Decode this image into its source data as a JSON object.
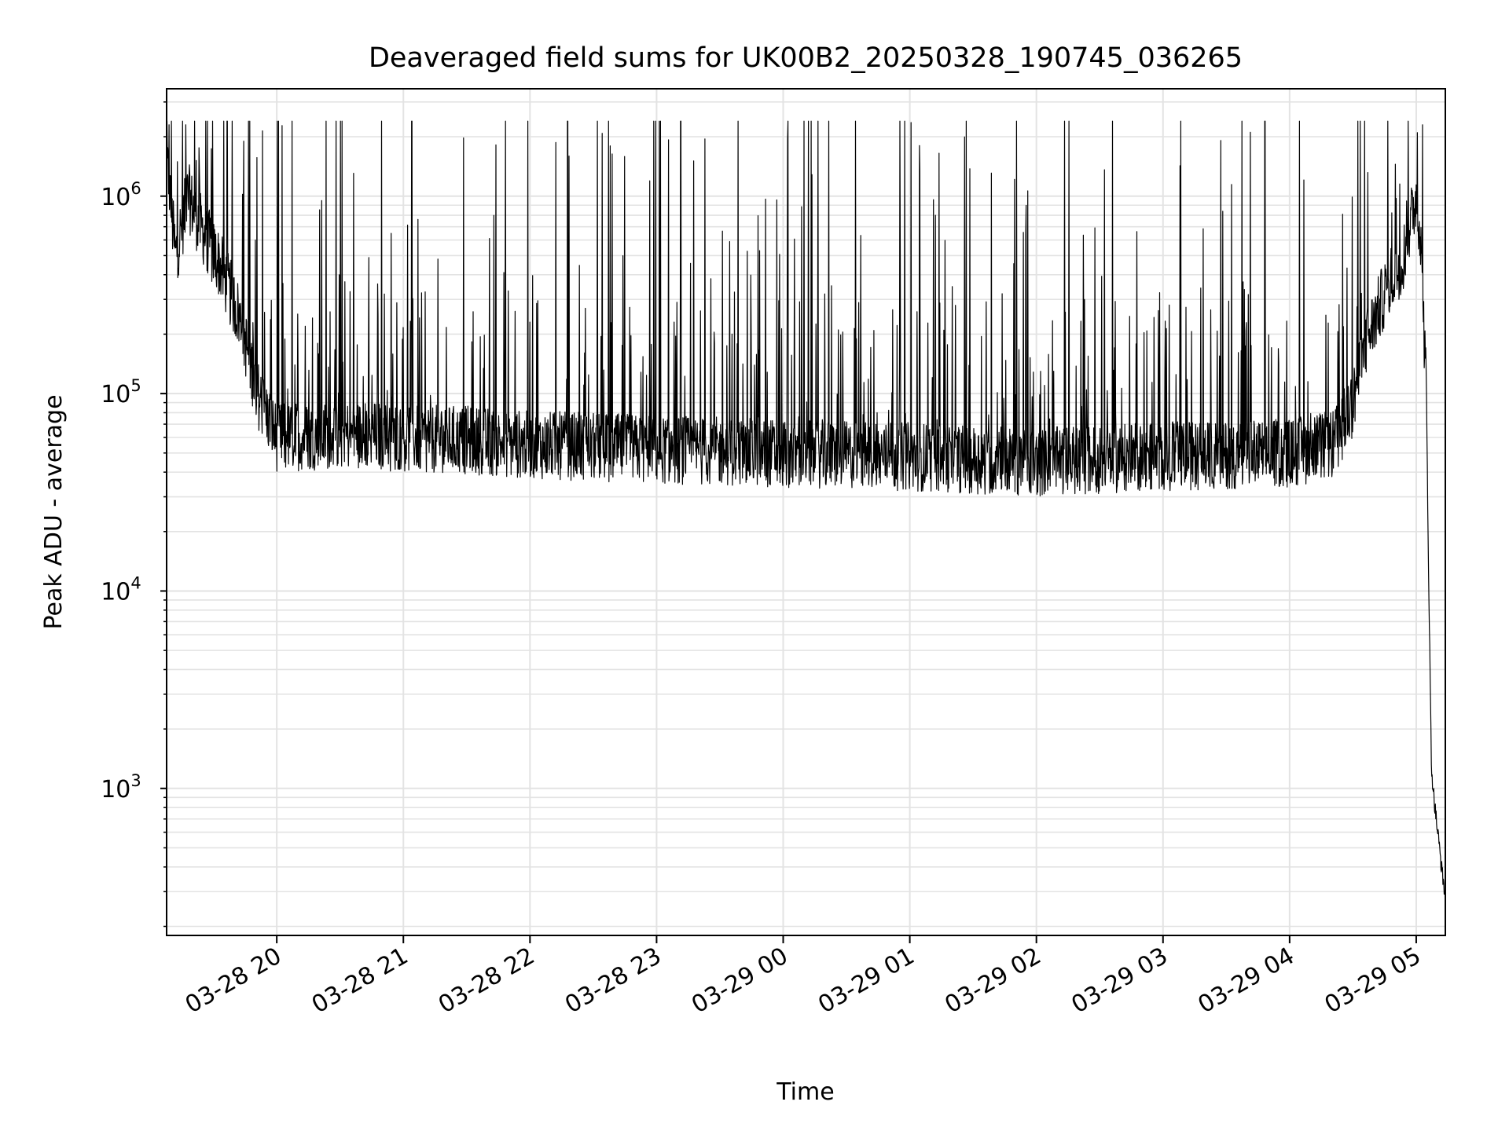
{
  "chart_data": {
    "type": "line",
    "title": "Deaveraged field sums for UK00B2_20250328_190745_036265",
    "xlabel": "Time",
    "ylabel": "Peak ADU - average",
    "yscale": "log",
    "ylim": [
      180,
      3500000
    ],
    "xlim_hours": [
      19.13,
      29.23
    ],
    "grid": true,
    "line_color": "#000000",
    "grid_color": "#e3e3e3",
    "y_ticks": [
      {
        "value": 1000,
        "base": "10",
        "exp": "3"
      },
      {
        "value": 10000,
        "base": "10",
        "exp": "4"
      },
      {
        "value": 100000,
        "base": "10",
        "exp": "5"
      },
      {
        "value": 1000000,
        "base": "10",
        "exp": "6"
      }
    ],
    "x_ticks": [
      {
        "hour": 20,
        "label": "03-28 20"
      },
      {
        "hour": 21,
        "label": "03-28 21"
      },
      {
        "hour": 22,
        "label": "03-28 22"
      },
      {
        "hour": 23,
        "label": "03-28 23"
      },
      {
        "hour": 24,
        "label": "03-29 00"
      },
      {
        "hour": 25,
        "label": "03-29 01"
      },
      {
        "hour": 26,
        "label": "03-29 02"
      },
      {
        "hour": 27,
        "label": "03-29 03"
      },
      {
        "hour": 28,
        "label": "03-29 04"
      },
      {
        "hour": 29,
        "label": "03-29 05"
      }
    ],
    "baseline_envelope": {
      "description": "approximate baseline level of the signal (x in hours since 03-28 00:00)",
      "x": [
        19.13,
        19.2,
        19.3,
        19.4,
        19.55,
        19.7,
        19.85,
        20.0,
        20.5,
        21.0,
        21.5,
        22.0,
        23.0,
        24.0,
        25.0,
        26.0,
        27.0,
        28.0,
        28.35,
        28.5,
        28.6,
        28.75,
        28.9,
        29.0,
        29.03,
        29.08,
        29.1,
        29.12,
        29.14,
        29.17,
        29.2,
        29.23
      ],
      "y": [
        1500000,
        500000,
        1000000,
        700000,
        450000,
        250000,
        100000,
        60000,
        62000,
        60000,
        58000,
        55000,
        52000,
        50000,
        48000,
        45000,
        48000,
        50000,
        55000,
        90000,
        180000,
        320000,
        500000,
        1000000,
        700000,
        100000,
        10000,
        1300,
        900,
        600,
        400,
        280
      ]
    },
    "notable_peaks": [
      {
        "x": 19.15,
        "y": 2300000
      },
      {
        "x": 19.28,
        "y": 2300000
      },
      {
        "x": 23.38,
        "y": 1950000
      },
      {
        "x": 25.23,
        "y": 1650000
      },
      {
        "x": 29.01,
        "y": 2100000
      },
      {
        "x": 29.05,
        "y": 2300000
      }
    ]
  }
}
